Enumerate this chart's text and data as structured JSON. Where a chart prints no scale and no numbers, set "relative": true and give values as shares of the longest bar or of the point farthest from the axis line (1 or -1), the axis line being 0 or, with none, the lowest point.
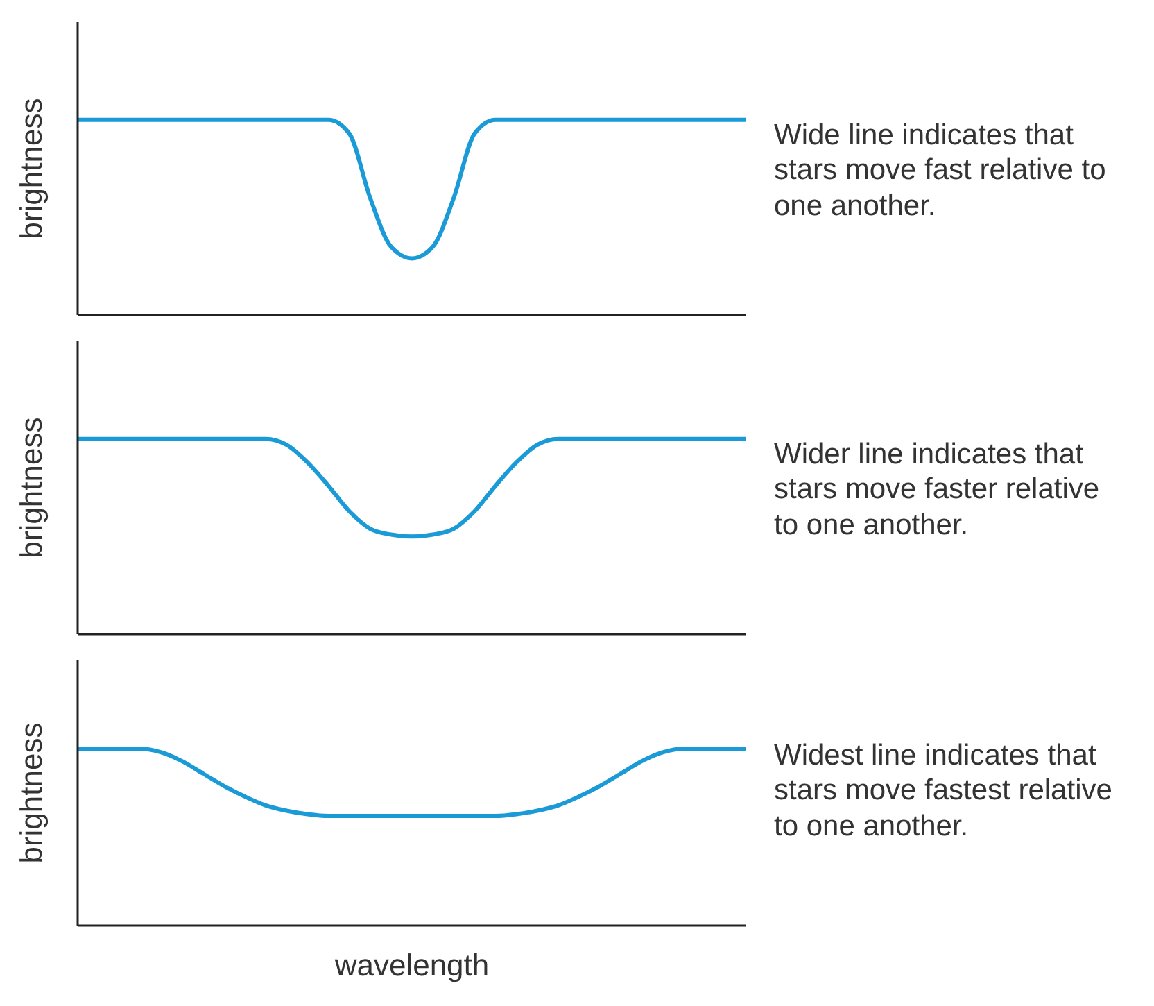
{
  "chart_data": [
    {
      "type": "line",
      "relative": true,
      "ylabel": "brightness",
      "grid": false,
      "legend": false,
      "marker": "none",
      "line_style": "solid",
      "categories": [
        null,
        null,
        null,
        null,
        null,
        null,
        null,
        null,
        null,
        null,
        null,
        null,
        null,
        null,
        null,
        null,
        null,
        null,
        null,
        null,
        null,
        null,
        null,
        null,
        null,
        null,
        null,
        null,
        null,
        null,
        null,
        null,
        null
      ],
      "series": [
        {
          "color": "#1a9ad6",
          "values": [
            1,
            1,
            1,
            1,
            1,
            1,
            1,
            1,
            1,
            1,
            1,
            1,
            1,
            0.93,
            0.6,
            0.35,
            0.29,
            0.35,
            0.6,
            0.93,
            1,
            1,
            1,
            1,
            1,
            1,
            1,
            1,
            1,
            1,
            1,
            1,
            1
          ]
        }
      ],
      "annotations": [
        "Wide line indicates that stars move fast relative to one another."
      ]
    },
    {
      "type": "line",
      "relative": true,
      "ylabel": "brightness",
      "grid": false,
      "legend": false,
      "marker": "none",
      "line_style": "solid",
      "categories": [
        null,
        null,
        null,
        null,
        null,
        null,
        null,
        null,
        null,
        null,
        null,
        null,
        null,
        null,
        null,
        null,
        null,
        null,
        null,
        null,
        null,
        null,
        null,
        null,
        null,
        null,
        null,
        null,
        null,
        null,
        null,
        null,
        null
      ],
      "series": [
        {
          "color": "#1a9ad6",
          "values": [
            1,
            1,
            1,
            1,
            1,
            1,
            1,
            1,
            1,
            1,
            0.97,
            0.88,
            0.76,
            0.63,
            0.54,
            0.51,
            0.5,
            0.51,
            0.54,
            0.63,
            0.76,
            0.88,
            0.97,
            1,
            1,
            1,
            1,
            1,
            1,
            1,
            1,
            1,
            1
          ]
        }
      ],
      "annotations": [
        "Wider line indicates that stars move faster relative to one another."
      ]
    },
    {
      "type": "line",
      "relative": true,
      "ylabel": "brightness",
      "xlabel": "wavelength",
      "grid": false,
      "legend": false,
      "marker": "none",
      "line_style": "solid",
      "categories": [
        null,
        null,
        null,
        null,
        null,
        null,
        null,
        null,
        null,
        null,
        null,
        null,
        null,
        null,
        null,
        null,
        null,
        null,
        null,
        null,
        null,
        null,
        null,
        null,
        null,
        null,
        null,
        null,
        null,
        null,
        null,
        null,
        null
      ],
      "series": [
        {
          "color": "#1a9ad6",
          "values": [
            1,
            1,
            1,
            1,
            0.98,
            0.93,
            0.86,
            0.79,
            0.73,
            0.68,
            0.65,
            0.63,
            0.62,
            0.62,
            0.62,
            0.62,
            0.62,
            0.62,
            0.62,
            0.62,
            0.62,
            0.63,
            0.65,
            0.68,
            0.73,
            0.79,
            0.86,
            0.93,
            0.98,
            1,
            1,
            1,
            1
          ]
        }
      ],
      "annotations": [
        "Widest line indicates that stars move fastest relative to one another."
      ]
    }
  ]
}
